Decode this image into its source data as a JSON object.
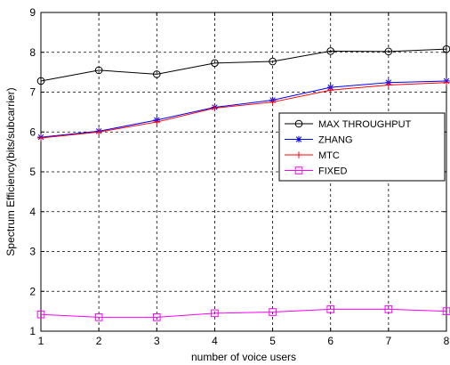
{
  "chart_data": {
    "type": "line",
    "title": "",
    "xlabel": "number of voice users",
    "ylabel": "Spectrum Efficiency(bits/subcarrier)",
    "x": [
      1,
      2,
      3,
      4,
      5,
      6,
      7,
      8
    ],
    "xlim": [
      1,
      8
    ],
    "ylim": [
      1,
      9
    ],
    "xticks": [
      "1",
      "2",
      "3",
      "4",
      "5",
      "6",
      "7",
      "8"
    ],
    "yticks": [
      "1",
      "2",
      "3",
      "4",
      "5",
      "6",
      "7",
      "8",
      "9"
    ],
    "grid": true,
    "legend_position": "center-right",
    "series": [
      {
        "name": "MAX THROUGHPUT",
        "values": [
          7.28,
          7.55,
          7.45,
          7.73,
          7.77,
          8.03,
          8.02,
          8.08
        ],
        "color": "#000000",
        "marker": "circle"
      },
      {
        "name": "ZHANG",
        "values": [
          5.87,
          6.02,
          6.3,
          6.62,
          6.8,
          7.12,
          7.24,
          7.28
        ],
        "color": "#0000ff",
        "marker": "star"
      },
      {
        "name": "MTC",
        "values": [
          5.85,
          6.0,
          6.25,
          6.6,
          6.75,
          7.05,
          7.18,
          7.24
        ],
        "color": "#ff0000",
        "marker": "plus"
      },
      {
        "name": "FIXED",
        "values": [
          1.42,
          1.35,
          1.35,
          1.45,
          1.48,
          1.55,
          1.55,
          1.5
        ],
        "color": "#ff00ff",
        "marker": "square"
      }
    ]
  }
}
